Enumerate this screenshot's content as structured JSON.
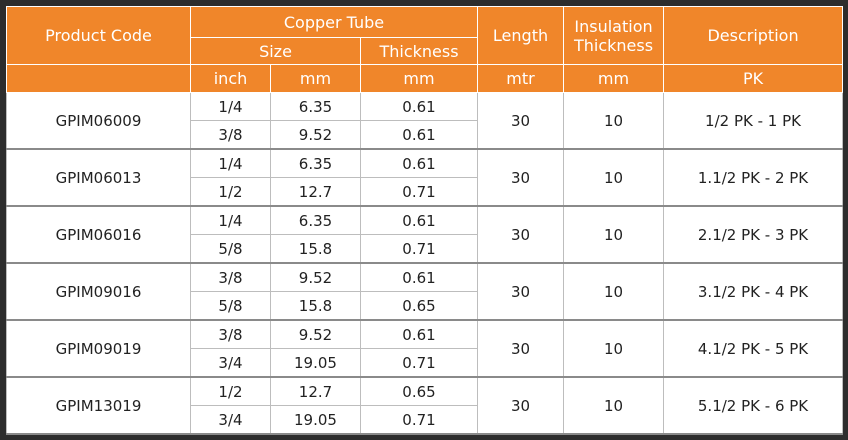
{
  "header": {
    "product_code": "Product Code",
    "copper_tube": "Copper Tube",
    "size": "Size",
    "thickness": "Thickness",
    "length": "Length",
    "insulation_thickness": "Insulation Thickness",
    "description": "Description",
    "units": [
      "inch",
      "mm",
      "mm",
      "mtr",
      "mm",
      "PK"
    ]
  },
  "rows": [
    {
      "product_code": "GPIM06009",
      "sizes": [
        {
          "inch": "1/4",
          "mm": 6.35,
          "thickness": 0.61
        },
        {
          "inch": "3/8",
          "mm": 9.52,
          "thickness": 0.61
        }
      ],
      "length": 30,
      "insulation": 10,
      "description": "1/2 PK - 1 PK"
    },
    {
      "product_code": "GPIM06013",
      "sizes": [
        {
          "inch": "1/4",
          "mm": 6.35,
          "thickness": 0.61
        },
        {
          "inch": "1/2",
          "mm": 12.7,
          "thickness": 0.71
        }
      ],
      "length": 30,
      "insulation": 10,
      "description": "1.1/2 PK - 2 PK"
    },
    {
      "product_code": "GPIM06016",
      "sizes": [
        {
          "inch": "1/4",
          "mm": 6.35,
          "thickness": 0.61
        },
        {
          "inch": "5/8",
          "mm": 15.8,
          "thickness": 0.71
        }
      ],
      "length": 30,
      "insulation": 10,
      "description": "2.1/2 PK - 3 PK"
    },
    {
      "product_code": "GPIM09016",
      "sizes": [
        {
          "inch": "3/8",
          "mm": 9.52,
          "thickness": 0.61
        },
        {
          "inch": "5/8",
          "mm": 15.8,
          "thickness": 0.65
        }
      ],
      "length": 30,
      "insulation": 10,
      "description": "3.1/2 PK - 4 PK"
    },
    {
      "product_code": "GPIM09019",
      "sizes": [
        {
          "inch": "3/8",
          "mm": 9.52,
          "thickness": 0.61
        },
        {
          "inch": "3/4",
          "mm": 19.05,
          "thickness": 0.71
        }
      ],
      "length": 30,
      "insulation": 10,
      "description": "4.1/2 PK - 5 PK"
    },
    {
      "product_code": "GPIM13019",
      "sizes": [
        {
          "inch": "1/2",
          "mm": 12.7,
          "thickness": 0.65
        },
        {
          "inch": "3/4",
          "mm": 19.05,
          "thickness": 0.71
        }
      ],
      "length": 30,
      "insulation": 10,
      "description": "5.1/2 PK - 6 PK"
    }
  ]
}
